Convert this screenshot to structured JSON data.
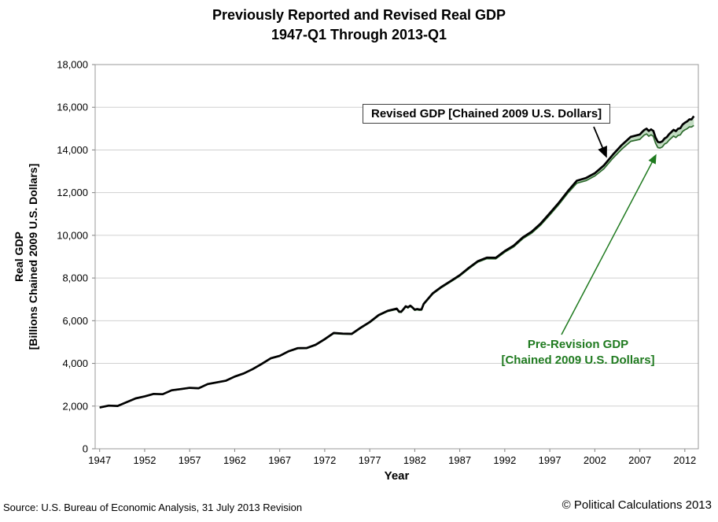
{
  "page": {
    "source": "Source: U.S. Bureau of Economic Analysis, 31 July 2013 Revision",
    "copyright": "© Political Calculations 2013"
  },
  "annotations": {
    "revised_label": "Revised GDP [Chained 2009 U.S. Dollars]",
    "prerevision_label_line1": "Pre-Revision GDP",
    "prerevision_label_line2": "[Chained 2009 U.S. Dollars]",
    "revised_color": "#000000",
    "prerevision_color": "#1f7a1f"
  },
  "chart_data": {
    "type": "line",
    "title": "Previously Reported and Revised Real GDP",
    "subtitle": "1947-Q1 Through 2013-Q1",
    "xlabel": "Year",
    "ylabel": "Real GDP [Billions Chained 2009 U.S. Dollars]",
    "ylabel_lines": [
      "Real GDP",
      "[Billions Chained 2009 U.S. Dollars]"
    ],
    "xlim": [
      1946.5,
      2013.5
    ],
    "ylim": [
      0,
      18000
    ],
    "ytick_step": 2000,
    "xticks": [
      1947,
      1952,
      1957,
      1962,
      1967,
      1972,
      1977,
      1982,
      1987,
      1992,
      1997,
      2002,
      2007,
      2012
    ],
    "grid": "horizontal",
    "legend_position": "none (arrow-annotated)",
    "x": [
      1947,
      1948,
      1949,
      1950,
      1951,
      1952,
      1953,
      1954,
      1955,
      1956,
      1957,
      1958,
      1959,
      1960,
      1961,
      1962,
      1963,
      1964,
      1965,
      1966,
      1967,
      1968,
      1969,
      1970,
      1971,
      1972,
      1973,
      1974,
      1975,
      1976,
      1977,
      1978,
      1979,
      1980,
      1980.25,
      1980.5,
      1980.75,
      1981,
      1981.25,
      1981.5,
      1981.75,
      1982,
      1982.25,
      1982.5,
      1982.75,
      1983,
      1984,
      1985,
      1986,
      1987,
      1988,
      1989,
      1990,
      1991,
      1992,
      1993,
      1994,
      1995,
      1996,
      1997,
      1998,
      1999,
      2000,
      2001,
      2002,
      2003,
      2004,
      2005,
      2006,
      2007,
      2007.25,
      2007.5,
      2007.75,
      2008,
      2008.25,
      2008.5,
      2008.75,
      2009,
      2009.25,
      2009.5,
      2009.75,
      2010,
      2010.25,
      2010.5,
      2010.75,
      2011,
      2011.25,
      2011.5,
      2011.75,
      2012,
      2012.25,
      2012.5,
      2012.75,
      2013
    ],
    "series": [
      {
        "name": "Revised GDP [Chained 2009 U.S. Dollars]",
        "color": "#000000",
        "values": [
          1934,
          2020,
          2008,
          2184,
          2360,
          2456,
          2571,
          2556,
          2740,
          2797,
          2856,
          2835,
          3031,
          3108,
          3188,
          3383,
          3530,
          3734,
          3977,
          4239,
          4355,
          4569,
          4713,
          4722,
          4877,
          5134,
          5424,
          5396,
          5385,
          5675,
          5937,
          6267,
          6466,
          6566,
          6430,
          6422,
          6545,
          6675,
          6628,
          6707,
          6626,
          6517,
          6548,
          6526,
          6528,
          6792,
          7285,
          7594,
          7861,
          8133,
          8475,
          8786,
          8955,
          8948,
          9267,
          9521,
          9905,
          10175,
          10561,
          11035,
          11526,
          12066,
          12560,
          12682,
          12909,
          13271,
          13774,
          14234,
          14614,
          14726,
          14839,
          14939,
          14996,
          14889,
          14963,
          14892,
          14577,
          14376,
          14355,
          14403,
          14542,
          14598,
          14739,
          14840,
          14943,
          14881,
          14989,
          15021,
          15190,
          15275,
          15336,
          15431,
          15434,
          15584
        ]
      },
      {
        "name": "Pre-Revision GDP [Chained 2009 U.S. Dollars]",
        "color": "#2e6b2e",
        "values": [
          1926,
          2011,
          1999,
          2174,
          2350,
          2446,
          2560,
          2545,
          2728,
          2785,
          2844,
          2822,
          3018,
          3094,
          3174,
          3368,
          3515,
          3718,
          3960,
          4221,
          4337,
          4550,
          4693,
          4701,
          4855,
          5111,
          5400,
          5371,
          5359,
          5648,
          5909,
          6238,
          6436,
          6533,
          6397,
          6389,
          6512,
          6642,
          6595,
          6674,
          6593,
          6484,
          6515,
          6493,
          6495,
          6756,
          7248,
          7556,
          7822,
          8093,
          8433,
          8742,
          8905,
          8896,
          9211,
          9462,
          9842,
          10105,
          10487,
          10956,
          11442,
          11976,
          12440,
          12557,
          12780,
          13111,
          13606,
          14039,
          14404,
          14496,
          14602,
          14700,
          14752,
          14640,
          14710,
          14635,
          14317,
          14110,
          14090,
          14140,
          14280,
          14330,
          14460,
          14555,
          14652,
          14580,
          14680,
          14705,
          14870,
          14940,
          14995,
          15080,
          15075,
          15150
        ]
      }
    ],
    "fill_between": {
      "between": [
        "Revised GDP",
        "Pre-Revision GDP"
      ],
      "color": "#8fc08f",
      "opacity": 0.55
    }
  }
}
